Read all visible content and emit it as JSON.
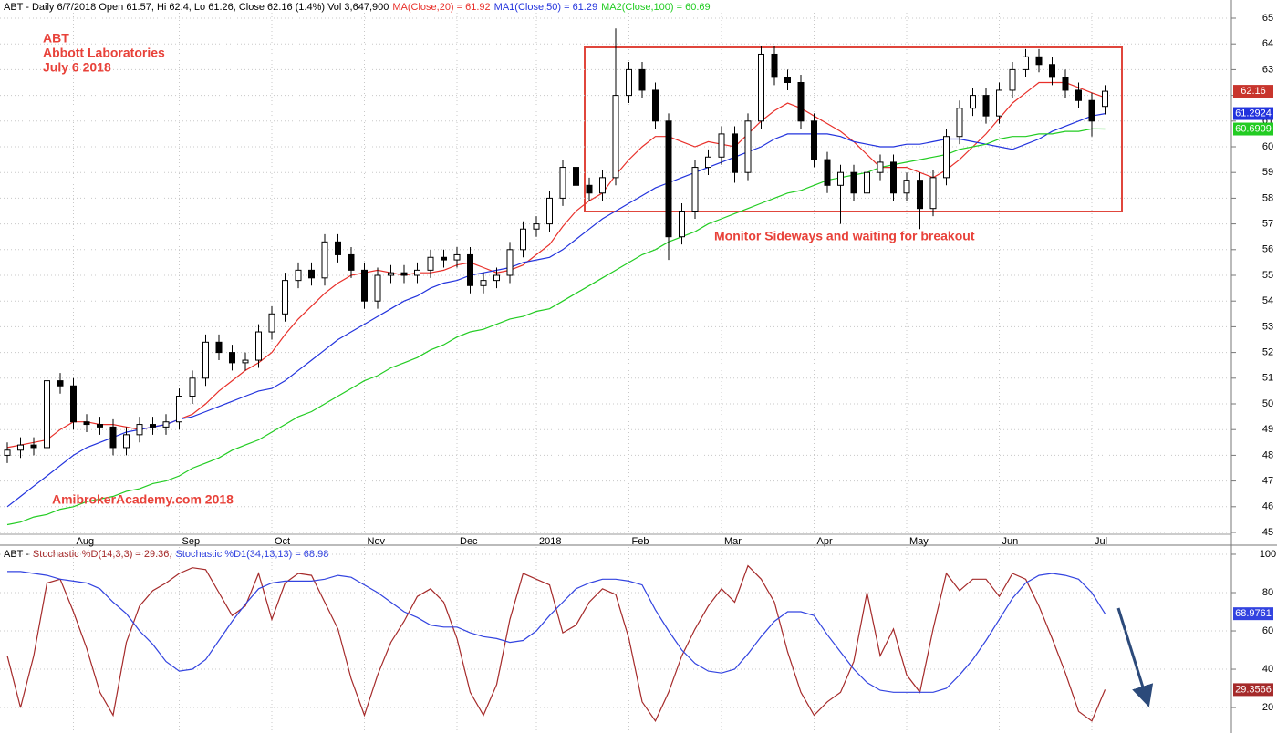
{
  "chart_data": [
    {
      "type": "candlestick",
      "header": "ABT - Daily 6/7/2018 Open 61.57, Hi 62.4, Lo 61.26, Close 62.16 (1.4%) Vol 3,647,900",
      "annotations": [
        "ABT",
        "Abbott Laboratories",
        "July 6 2018",
        "Monitor Sideways  and waiting for breakout",
        "AmibrokerAcademy.com 2018"
      ],
      "annotation_color": "#e8423a",
      "categories": [
        null,
        null,
        null,
        null,
        null,
        "Aug",
        null,
        null,
        null,
        null,
        null,
        null,
        null,
        "Sep",
        null,
        null,
        null,
        null,
        null,
        null,
        "Oct",
        null,
        null,
        null,
        null,
        null,
        null,
        "Nov",
        null,
        null,
        null,
        null,
        null,
        null,
        "Dec",
        null,
        null,
        null,
        null,
        null,
        "2018",
        null,
        null,
        null,
        null,
        null,
        null,
        "Feb",
        null,
        null,
        null,
        null,
        null,
        null,
        "Mar",
        null,
        null,
        null,
        null,
        null,
        null,
        "Apr",
        null,
        null,
        null,
        null,
        null,
        null,
        "May",
        null,
        null,
        null,
        null,
        null,
        null,
        "Jun",
        null,
        null,
        null,
        null,
        null,
        null,
        "Jul",
        null
      ],
      "open": [
        48.0,
        48.2,
        48.4,
        48.3,
        50.9,
        50.7,
        49.3,
        49.2,
        49.1,
        48.3,
        48.8,
        49.2,
        49.1,
        49.3,
        50.3,
        51.0,
        52.4,
        52.0,
        51.6,
        51.7,
        52.8,
        53.5,
        54.8,
        55.2,
        54.9,
        56.3,
        55.8,
        55.2,
        54.0,
        55.0,
        55.1,
        55.0,
        55.2,
        55.7,
        55.6,
        55.8,
        54.6,
        54.8,
        55.0,
        56.0,
        56.8,
        57.0,
        58.0,
        59.2,
        58.5,
        58.2,
        58.8,
        62.0,
        63.0,
        62.2,
        61.0,
        56.5,
        57.5,
        59.2,
        59.6,
        60.5,
        59.0,
        61.0,
        63.6,
        62.7,
        62.5,
        61.0,
        59.5,
        58.5,
        59.0,
        58.2,
        59.0,
        59.4,
        58.2,
        58.7,
        57.6,
        58.8,
        60.4,
        61.5,
        62.0,
        61.2,
        62.2,
        63.0,
        63.5,
        63.2,
        62.7,
        62.2,
        61.8,
        61.57
      ],
      "high": [
        48.5,
        48.7,
        48.7,
        51.2,
        51.2,
        51.0,
        49.6,
        49.5,
        49.4,
        49.1,
        49.5,
        49.5,
        49.6,
        50.6,
        51.3,
        52.7,
        52.7,
        52.3,
        52.0,
        53.1,
        53.8,
        55.1,
        55.5,
        55.5,
        56.6,
        56.6,
        56.1,
        55.5,
        55.3,
        55.4,
        55.4,
        55.5,
        56.0,
        56.0,
        56.1,
        56.1,
        55.1,
        55.3,
        56.3,
        57.1,
        57.3,
        58.3,
        59.5,
        59.5,
        58.8,
        59.1,
        64.6,
        63.3,
        63.3,
        62.5,
        61.3,
        57.8,
        59.5,
        59.9,
        60.8,
        60.8,
        61.3,
        63.9,
        63.9,
        63.0,
        62.8,
        61.3,
        59.8,
        59.3,
        59.3,
        59.3,
        59.7,
        59.7,
        59.0,
        59.0,
        59.1,
        60.7,
        61.8,
        62.3,
        62.3,
        62.5,
        63.3,
        63.8,
        63.8,
        63.5,
        63.0,
        62.5,
        62.1,
        62.4
      ],
      "low": [
        47.7,
        47.9,
        48.0,
        48.0,
        50.4,
        49.0,
        48.9,
        48.8,
        48.0,
        48.0,
        48.5,
        48.8,
        48.8,
        49.0,
        50.0,
        50.7,
        51.7,
        51.3,
        51.3,
        51.4,
        52.5,
        53.2,
        54.5,
        54.6,
        54.6,
        55.5,
        54.9,
        53.7,
        53.7,
        54.7,
        54.7,
        54.7,
        54.9,
        55.3,
        55.3,
        54.3,
        54.3,
        54.5,
        54.7,
        55.7,
        56.5,
        56.7,
        57.7,
        58.2,
        57.9,
        57.9,
        58.5,
        61.7,
        61.9,
        60.7,
        55.6,
        56.2,
        57.2,
        58.9,
        59.3,
        58.6,
        58.7,
        60.7,
        62.4,
        62.2,
        60.7,
        59.2,
        58.2,
        57.0,
        57.9,
        57.9,
        58.7,
        57.9,
        57.9,
        56.8,
        57.3,
        58.5,
        60.1,
        61.2,
        60.9,
        60.9,
        61.9,
        62.7,
        62.9,
        62.4,
        61.9,
        61.5,
        60.4,
        61.26
      ],
      "close": [
        48.2,
        48.4,
        48.3,
        50.9,
        50.7,
        49.3,
        49.2,
        49.1,
        48.3,
        48.8,
        49.2,
        49.1,
        49.3,
        50.3,
        51.0,
        52.4,
        52.0,
        51.6,
        51.7,
        52.8,
        53.5,
        54.8,
        55.2,
        54.9,
        56.3,
        55.8,
        55.2,
        54.0,
        55.0,
        55.1,
        55.0,
        55.2,
        55.7,
        55.6,
        55.8,
        54.6,
        54.8,
        55.0,
        56.0,
        56.8,
        57.0,
        58.0,
        59.2,
        58.5,
        58.2,
        58.8,
        62.0,
        63.0,
        62.2,
        61.0,
        56.5,
        57.5,
        59.2,
        59.6,
        60.5,
        59.0,
        61.0,
        63.6,
        62.7,
        62.5,
        61.0,
        59.5,
        58.5,
        59.0,
        58.2,
        59.0,
        59.4,
        58.2,
        58.7,
        57.6,
        58.8,
        60.4,
        61.5,
        62.0,
        61.2,
        62.2,
        63.0,
        63.5,
        63.2,
        62.7,
        62.2,
        61.8,
        61.0,
        62.16
      ],
      "last_close_label": "62.16",
      "last_close_label_color": "#c8352d",
      "series": [
        {
          "name": "MA(Close,20) = 61.92",
          "color": "#e8302a",
          "values": [
            48.3,
            48.4,
            48.5,
            48.6,
            49.0,
            49.3,
            49.3,
            49.2,
            49.2,
            49.1,
            49.0,
            49.1,
            49.2,
            49.4,
            49.6,
            50.0,
            50.5,
            50.9,
            51.3,
            51.6,
            52.0,
            52.7,
            53.3,
            53.8,
            54.3,
            54.7,
            55.0,
            55.1,
            55.2,
            55.1,
            55.0,
            55.1,
            55.1,
            55.2,
            55.4,
            55.5,
            55.3,
            55.1,
            55.2,
            55.4,
            55.8,
            56.2,
            56.9,
            57.5,
            57.9,
            58.2,
            58.9,
            59.5,
            60.0,
            60.4,
            60.4,
            60.2,
            60.0,
            60.2,
            60.1,
            60.0,
            60.5,
            61.0,
            61.4,
            61.7,
            61.5,
            61.2,
            60.9,
            60.6,
            60.2,
            59.7,
            59.2,
            59.2,
            59.2,
            59.0,
            58.8,
            59.1,
            59.5,
            60.0,
            60.5,
            61.1,
            61.7,
            62.1,
            62.5,
            62.5,
            62.5,
            62.3,
            62.1,
            61.92
          ]
        },
        {
          "name": "MA1(Close,50) = 61.29",
          "color": "#2233dd",
          "axis_label": "61.2924",
          "values": [
            46.0,
            46.4,
            46.8,
            47.2,
            47.6,
            48.0,
            48.3,
            48.5,
            48.7,
            48.9,
            49.0,
            49.1,
            49.2,
            49.4,
            49.5,
            49.7,
            49.9,
            50.1,
            50.3,
            50.5,
            50.6,
            50.9,
            51.3,
            51.7,
            52.1,
            52.5,
            52.8,
            53.1,
            53.4,
            53.7,
            54.0,
            54.2,
            54.5,
            54.7,
            54.8,
            55.0,
            55.1,
            55.2,
            55.3,
            55.5,
            55.6,
            55.7,
            56.0,
            56.4,
            56.8,
            57.2,
            57.5,
            57.8,
            58.1,
            58.4,
            58.6,
            58.8,
            59.0,
            59.2,
            59.4,
            59.6,
            59.8,
            60.0,
            60.3,
            60.5,
            60.5,
            60.5,
            60.5,
            60.4,
            60.2,
            60.1,
            60.0,
            60.0,
            60.1,
            60.1,
            60.2,
            60.3,
            60.3,
            60.2,
            60.1,
            60.0,
            59.9,
            60.1,
            60.3,
            60.6,
            60.8,
            61.0,
            61.2,
            61.2924
          ]
        },
        {
          "name": "MA2(Close,100) = 60.69",
          "color": "#22cc22",
          "axis_label": "60.6909",
          "values": [
            45.3,
            45.4,
            45.6,
            45.7,
            45.9,
            46.0,
            46.2,
            46.3,
            46.4,
            46.6,
            46.7,
            46.9,
            47.0,
            47.2,
            47.5,
            47.7,
            47.9,
            48.2,
            48.4,
            48.6,
            48.9,
            49.2,
            49.5,
            49.7,
            50.0,
            50.3,
            50.6,
            50.9,
            51.1,
            51.4,
            51.6,
            51.8,
            52.1,
            52.3,
            52.6,
            52.8,
            52.9,
            53.1,
            53.3,
            53.4,
            53.6,
            53.7,
            54.0,
            54.3,
            54.6,
            54.9,
            55.2,
            55.5,
            55.8,
            56.0,
            56.3,
            56.5,
            56.7,
            57.0,
            57.2,
            57.4,
            57.6,
            57.8,
            58.0,
            58.2,
            58.3,
            58.5,
            58.7,
            58.8,
            58.9,
            59.0,
            59.2,
            59.3,
            59.4,
            59.5,
            59.6,
            59.7,
            59.9,
            60.0,
            60.1,
            60.3,
            60.4,
            60.4,
            60.5,
            60.5,
            60.6,
            60.6,
            60.7,
            60.6909
          ]
        }
      ],
      "ylim": [
        45,
        65
      ],
      "yticks": [
        45,
        46,
        47,
        48,
        49,
        50,
        51,
        52,
        53,
        54,
        55,
        56,
        57,
        58,
        59,
        60,
        61,
        62,
        63,
        64,
        65
      ],
      "grid": true
    },
    {
      "type": "line",
      "header": "ABT -",
      "series": [
        {
          "name": "Stochastic %D(14,3,3) = 29.36,",
          "color": "#a52a2a",
          "axis_label": "29.3566",
          "values": [
            47,
            20,
            47,
            85,
            87,
            70,
            51,
            28,
            16,
            54,
            73,
            81,
            85,
            90,
            93,
            92,
            80,
            68,
            73,
            90,
            66,
            85,
            90,
            89,
            75,
            61,
            35,
            16,
            37,
            54,
            65,
            78,
            82,
            75,
            56,
            28,
            16,
            32,
            66,
            90,
            87,
            84,
            59,
            63,
            75,
            82,
            79,
            56,
            23,
            13,
            28,
            47,
            61,
            73,
            82,
            75,
            94,
            87,
            75,
            49,
            28,
            16,
            23,
            28,
            44,
            80,
            47,
            61,
            37,
            28,
            61,
            90,
            81,
            87,
            87,
            78,
            90,
            87,
            73,
            56,
            38,
            18,
            13,
            29.3566
          ]
        },
        {
          "name": "Stochastic %D1(34,13,13) = 68.98",
          "color": "#3344e0",
          "axis_label": "68.9761",
          "values": [
            91,
            91,
            90,
            89,
            87,
            86,
            85,
            82,
            75,
            69,
            60,
            53,
            44,
            39,
            40,
            45,
            55,
            65,
            74,
            82,
            85,
            86,
            86,
            86,
            87,
            89,
            88,
            84,
            80,
            75,
            70,
            67,
            63,
            62,
            62,
            59,
            57,
            56,
            54,
            55,
            60,
            68,
            75,
            82,
            85,
            87,
            87,
            86,
            84,
            71,
            60,
            50,
            43,
            39,
            38,
            40,
            48,
            57,
            65,
            70,
            70,
            68,
            58,
            49,
            40,
            33,
            29,
            28,
            28,
            28,
            28,
            30,
            37,
            45,
            55,
            66,
            77,
            85,
            89,
            90,
            89,
            87,
            80,
            68.9761
          ]
        }
      ],
      "ylim": [
        6.7,
        103.8
      ],
      "yticks": [
        20,
        40,
        60,
        80,
        100
      ],
      "grid": true
    }
  ]
}
